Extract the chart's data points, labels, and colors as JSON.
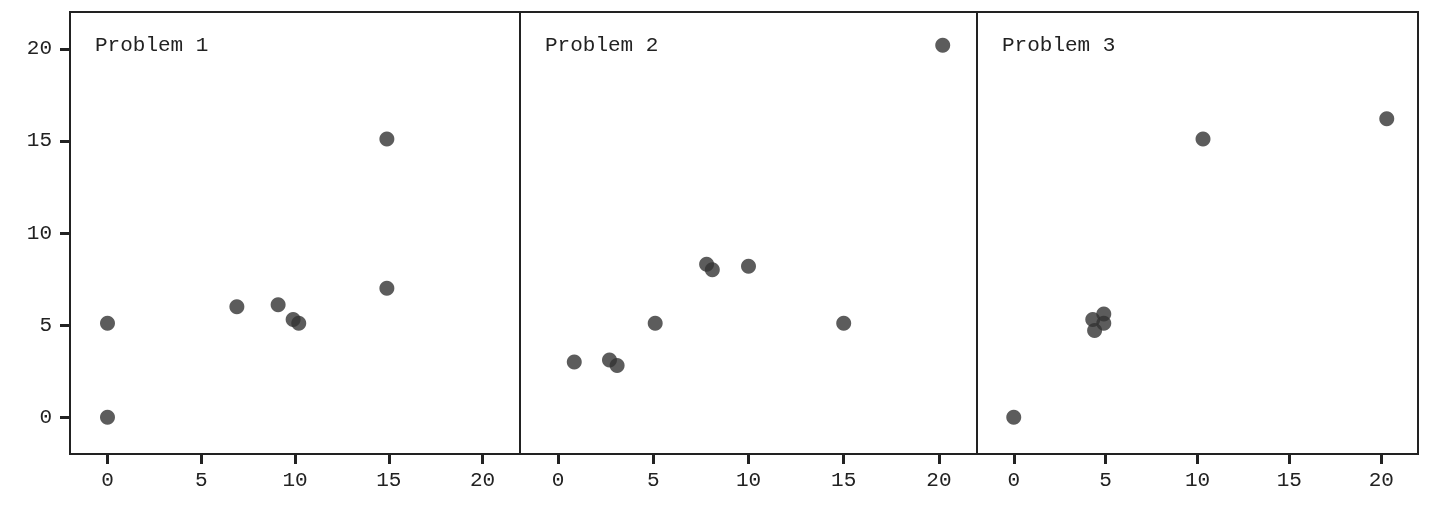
{
  "chart_data": [
    {
      "type": "scatter",
      "title": "Problem 1",
      "x": [
        0,
        0,
        6.9,
        9.1,
        9.9,
        10.2,
        14.9,
        14.9
      ],
      "series": [
        {
          "color": "#333333",
          "values": [
            5.1,
            0,
            6.0,
            6.1,
            5.3,
            5.1,
            15.1,
            7.0
          ]
        }
      ],
      "xlim": [
        -2,
        22
      ],
      "ylim": [
        -2,
        22
      ],
      "xticks": [
        0,
        5,
        10,
        15,
        20
      ],
      "yticks": [
        0,
        5,
        10,
        15,
        20
      ],
      "grid": false,
      "marker": "circle"
    },
    {
      "type": "scatter",
      "title": "Problem 2",
      "x": [
        0.85,
        2.7,
        3.1,
        5.1,
        7.8,
        8.1,
        10.0,
        15.0,
        20.2
      ],
      "series": [
        {
          "color": "#333333",
          "values": [
            3.0,
            3.1,
            2.8,
            5.1,
            8.3,
            8.0,
            8.2,
            5.1,
            20.2
          ]
        }
      ],
      "xlim": [
        -2,
        22
      ],
      "ylim": [
        -2,
        22
      ],
      "xticks": [
        0,
        5,
        10,
        15,
        20
      ],
      "yticks": [
        0,
        5,
        10,
        15,
        20
      ],
      "grid": false,
      "marker": "circle",
      "tick_labels": "x"
    },
    {
      "type": "scatter",
      "title": "Problem 3",
      "x": [
        0,
        4.3,
        4.9,
        4.9,
        4.4,
        10.3,
        20.3
      ],
      "series": [
        {
          "color": "#333333",
          "values": [
            0,
            5.3,
            5.6,
            5.1,
            4.7,
            15.1,
            16.2
          ]
        }
      ],
      "xlim": [
        -2,
        22
      ],
      "ylim": [
        -2,
        22
      ],
      "xticks": [
        0,
        5,
        10,
        15,
        20
      ],
      "yticks": [
        0,
        5,
        10,
        15,
        20
      ],
      "grid": false,
      "marker": "circle",
      "tick_labels": "x"
    }
  ]
}
